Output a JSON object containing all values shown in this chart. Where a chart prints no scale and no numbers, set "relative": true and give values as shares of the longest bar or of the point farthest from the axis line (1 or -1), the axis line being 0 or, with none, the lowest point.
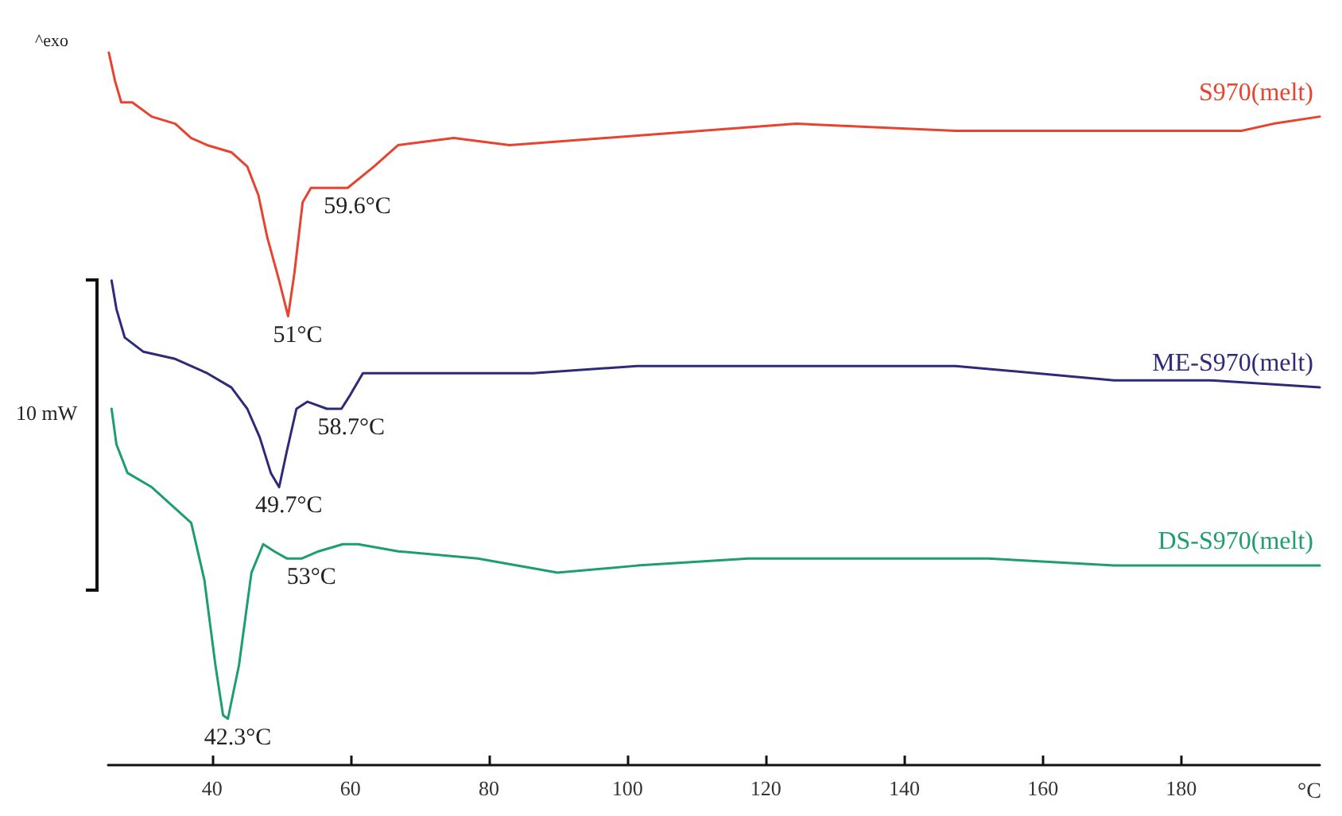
{
  "chart_data": {
    "type": "line",
    "relative": true,
    "xlabel": "°C",
    "xlim": [
      25,
      200
    ],
    "xticks": [
      40,
      60,
      80,
      100,
      120,
      140,
      160,
      180
    ],
    "grid": false,
    "legend": false,
    "marker": "none",
    "line_style": "solid",
    "series": [
      {
        "name": "S970(melt)",
        "color": "#e8432f",
        "x": [
          25.1,
          26,
          26.9,
          28.5,
          31.3,
          34.7,
          37,
          39.3,
          42.8,
          45.1,
          46.7,
          48,
          49.7,
          51,
          51.9,
          53.1,
          54.3,
          57.7,
          59.6,
          63.4,
          66.9,
          74.9,
          83,
          96.8,
          124.4,
          147.4,
          170.3,
          188.7,
          193.3,
          200
        ],
        "values": [
          1,
          0.96,
          0.93,
          0.93,
          0.91,
          0.9,
          0.88,
          0.87,
          0.86,
          0.84,
          0.8,
          0.74,
          0.68,
          0.63,
          0.69,
          0.79,
          0.81,
          0.81,
          0.81,
          0.84,
          0.87,
          0.88,
          0.87,
          0.88,
          0.9,
          0.89,
          0.89,
          0.89,
          0.9,
          0.91
        ]
      },
      {
        "name": "ME-S970(melt)",
        "color": "#2e2a7a",
        "x": [
          25.5,
          26.2,
          27.4,
          30.1,
          34.7,
          39.3,
          42.8,
          45.1,
          46.9,
          48.5,
          49.7,
          50.8,
          52.2,
          53.8,
          56.6,
          58.7,
          60,
          61.8,
          64.6,
          86.4,
          101.4,
          112.9,
          124.4,
          147.4,
          170.3,
          184.1,
          200
        ],
        "values": [
          0.68,
          0.64,
          0.6,
          0.58,
          0.57,
          0.55,
          0.53,
          0.5,
          0.46,
          0.41,
          0.39,
          0.44,
          0.5,
          0.51,
          0.5,
          0.5,
          0.52,
          0.55,
          0.55,
          0.55,
          0.56,
          0.56,
          0.56,
          0.56,
          0.54,
          0.54,
          0.53
        ]
      },
      {
        "name": "DS-S970(melt)",
        "color": "#1d9e6e",
        "x": [
          25.5,
          26.2,
          27.8,
          31.3,
          34.7,
          37,
          38.9,
          40.5,
          41.6,
          42.3,
          43.9,
          45.7,
          47.4,
          49,
          50.8,
          53,
          55.4,
          58.9,
          61.1,
          66.9,
          78.4,
          89.9,
          101.4,
          117.5,
          135.9,
          152,
          170.3,
          200
        ],
        "values": [
          0.5,
          0.45,
          0.41,
          0.39,
          0.36,
          0.34,
          0.26,
          0.14,
          0.07,
          0.065,
          0.14,
          0.27,
          0.31,
          0.3,
          0.29,
          0.29,
          0.3,
          0.31,
          0.31,
          0.3,
          0.29,
          0.27,
          0.28,
          0.29,
          0.29,
          0.29,
          0.28,
          0.28
        ]
      }
    ],
    "annotations": [
      "^exo",
      "10 mW",
      {
        "text": "51°C",
        "x": 51,
        "y": 0.63
      },
      {
        "text": "59.6°C",
        "x": 59.6,
        "y": 0.81
      },
      {
        "text": "49.7°C",
        "x": 49.7,
        "y": 0.39
      },
      {
        "text": "58.7°C",
        "x": 58.7,
        "y": 0.5
      },
      {
        "text": "42.3°C",
        "x": 42.3,
        "y": 0.065
      },
      {
        "text": "53°C",
        "x": 53,
        "y": 0.29
      }
    ]
  }
}
